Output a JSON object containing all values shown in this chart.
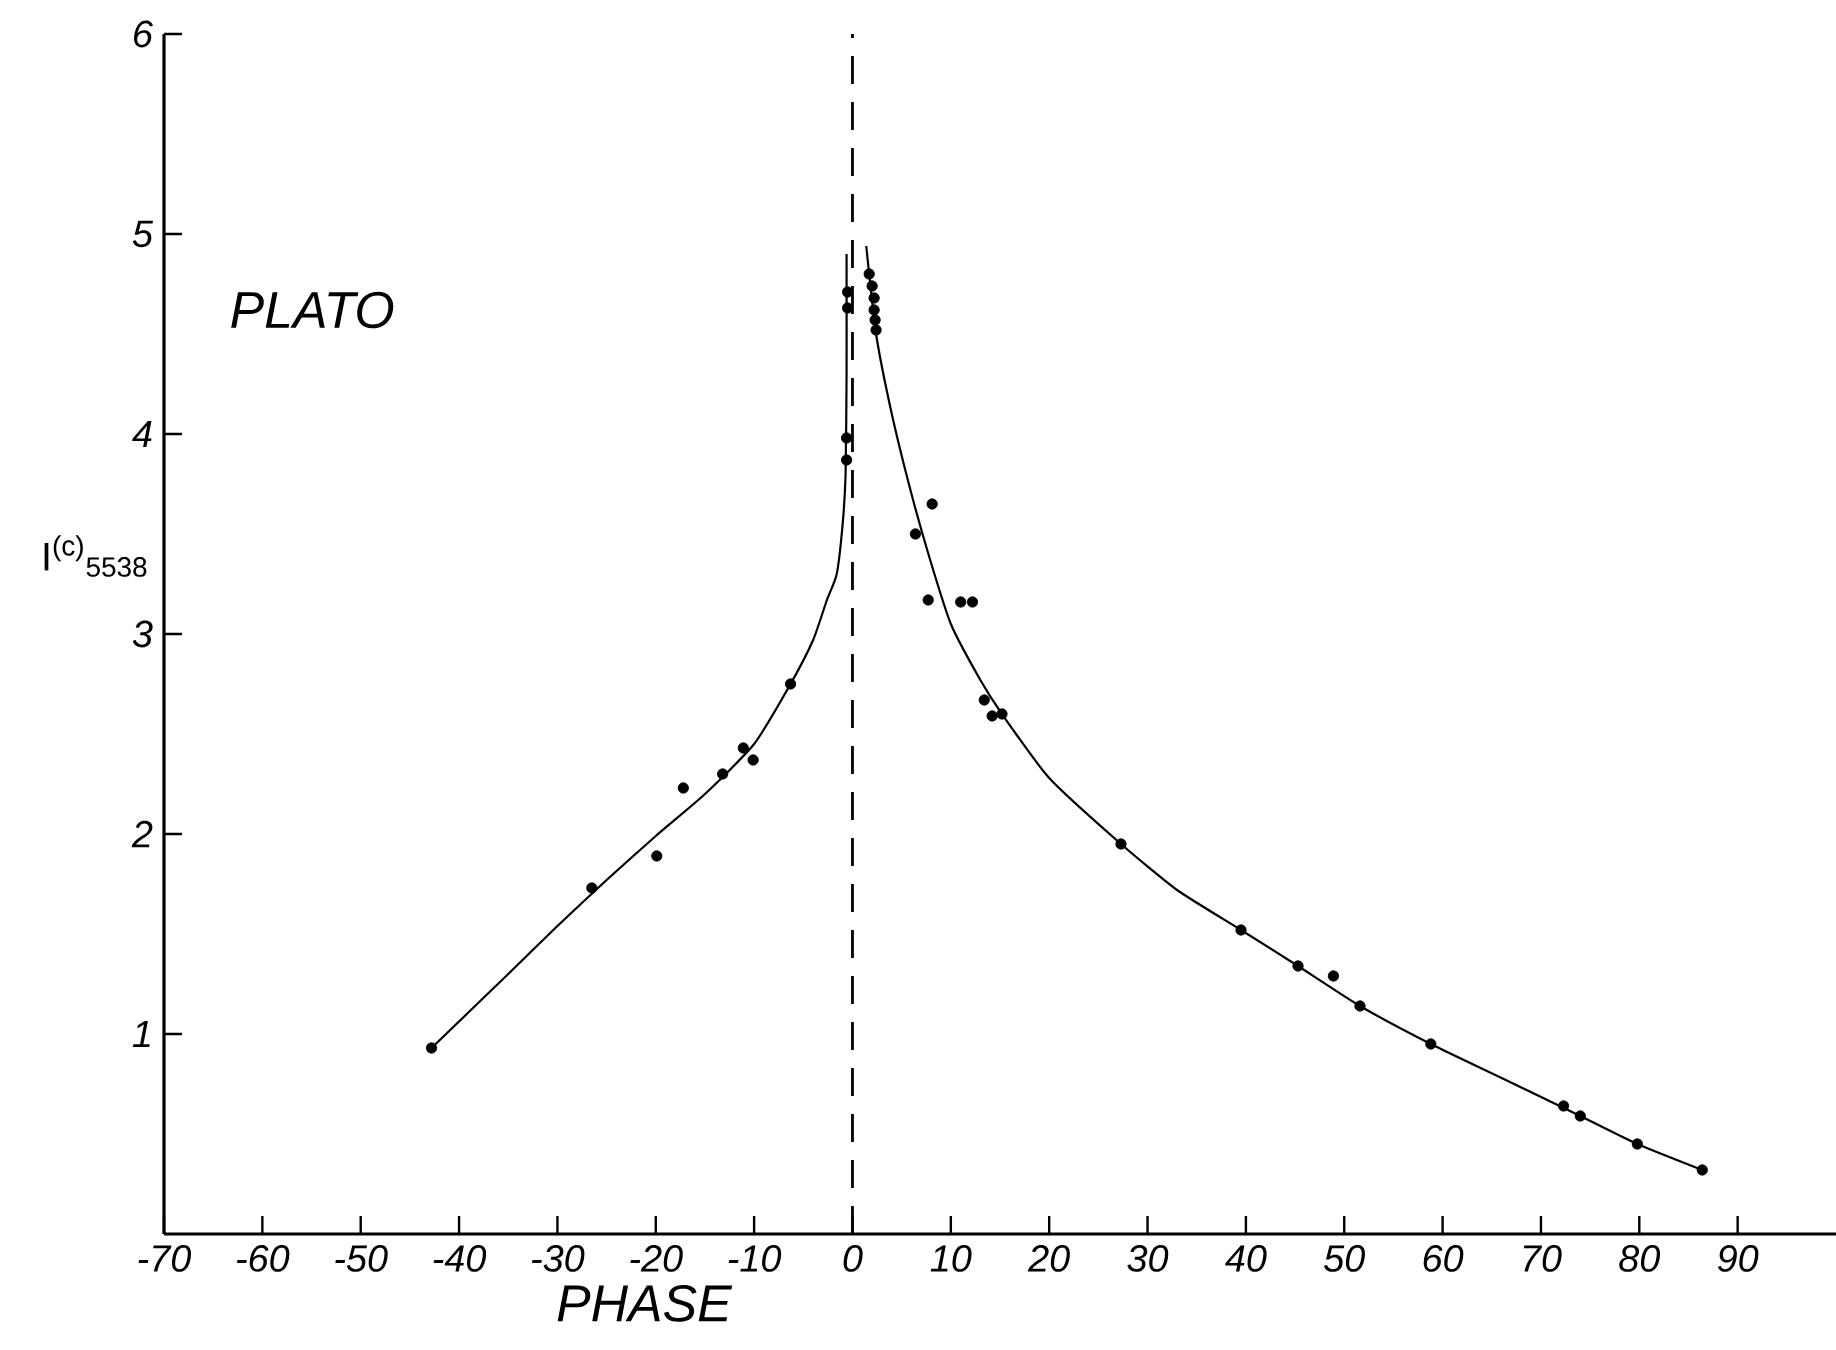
{
  "chart_data": {
    "type": "scatter",
    "xlabel": "PHASE",
    "ylabel": "I$^{(c)}$$_{5538}$",
    "annotations": [
      "PLATO"
    ],
    "xlim": [
      -70,
      100
    ],
    "ylim": [
      0,
      6
    ],
    "xticks": [
      -70,
      -60,
      -50,
      -40,
      -30,
      -20,
      -10,
      0,
      10,
      20,
      30,
      40,
      50,
      60,
      70,
      80,
      90
    ],
    "yticks": [
      1,
      2,
      3,
      4,
      5,
      6
    ],
    "grid": false,
    "legend": false,
    "ref_lines": [
      {
        "axis": "x",
        "value": 0,
        "line_style": "dashed",
        "color": "#000000"
      }
    ],
    "series": [
      {
        "marker": "circle",
        "color": "#000000",
        "x": [
          -42.8,
          -26.5,
          -19.9,
          -17.2,
          -13.2,
          -11.1,
          -10.1,
          -6.3,
          -0.5,
          -0.5,
          -0.6,
          -0.6,
          1.7,
          2.0,
          2.2,
          2.2,
          2.3,
          2.4,
          6.4,
          8.1,
          7.7,
          11.0,
          12.2,
          13.4,
          14.2,
          15.2,
          27.3,
          39.5,
          45.3,
          48.9,
          51.6,
          58.8,
          72.3,
          74.0,
          79.8,
          86.4
        ],
        "values": [
          0.93,
          1.73,
          1.89,
          2.23,
          2.3,
          2.43,
          2.37,
          2.75,
          4.71,
          4.63,
          3.98,
          3.87,
          4.8,
          4.74,
          4.68,
          4.62,
          4.57,
          4.52,
          3.5,
          3.65,
          3.17,
          3.16,
          3.16,
          2.67,
          2.59,
          2.6,
          1.95,
          1.52,
          1.34,
          1.29,
          1.14,
          0.95,
          0.64,
          0.59,
          0.45,
          0.32
        ]
      },
      {
        "type": "line",
        "marker": "none",
        "line_style": "solid",
        "color": "#000000",
        "x": [
          -42.8,
          -35,
          -30,
          -25,
          -20,
          -15,
          -10,
          -6.3,
          -4,
          -2.6,
          -1.6,
          -1.0,
          -0.7,
          -0.6,
          -0.6,
          0.5,
          1.4,
          2.4,
          4,
          6,
          7.9,
          10,
          13,
          15.2,
          20,
          27.3,
          33,
          39.5,
          45.3,
          51.6,
          58.8,
          66,
          74.0,
          79.8,
          86.4
        ],
        "values": [
          0.93,
          1.3,
          1.54,
          1.77,
          1.99,
          2.2,
          2.45,
          2.75,
          2.97,
          3.17,
          3.3,
          3.55,
          3.8,
          4.3,
          4.9,
          null,
          4.94,
          4.5,
          4.1,
          3.7,
          3.37,
          3.05,
          2.77,
          2.6,
          2.28,
          1.95,
          1.72,
          1.52,
          1.34,
          1.14,
          0.95,
          0.78,
          0.59,
          0.45,
          0.32
        ]
      }
    ]
  }
}
